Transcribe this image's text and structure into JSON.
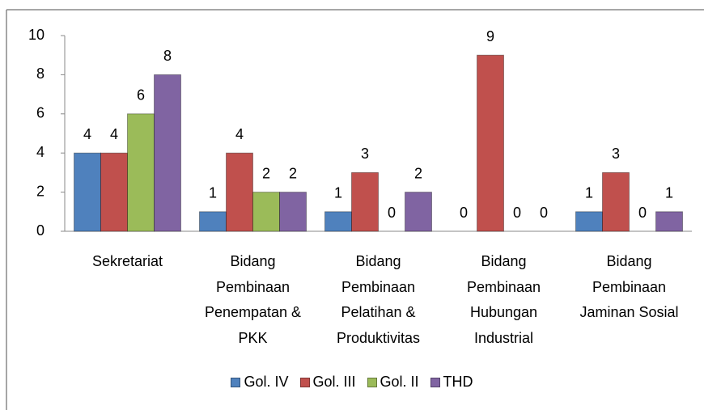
{
  "chart_data": {
    "type": "bar",
    "categories": [
      "Sekretariat",
      "Bidang Pembinaan Penempatan & PKK",
      "Bidang Pembinaan Pelatihan & Produktivitas",
      "Bidang Pembinaan Hubungan Industrial",
      "Bidang Pembinaan Jaminan Sosial"
    ],
    "series": [
      {
        "name": "Gol. IV",
        "color": "#4f81bd",
        "values": [
          4,
          1,
          1,
          0,
          1
        ]
      },
      {
        "name": "Gol. III",
        "color": "#c0504d",
        "values": [
          4,
          4,
          3,
          9,
          3
        ]
      },
      {
        "name": "Gol. II",
        "color": "#9bbb59",
        "values": [
          6,
          2,
          0,
          0,
          0
        ]
      },
      {
        "name": "THD",
        "color": "#8064a2",
        "values": [
          8,
          2,
          2,
          0,
          1
        ]
      }
    ],
    "ylim": [
      0,
      10
    ],
    "yticks": [
      0,
      2,
      4,
      6,
      8,
      10
    ],
    "grid": false,
    "legend": "bottom"
  }
}
